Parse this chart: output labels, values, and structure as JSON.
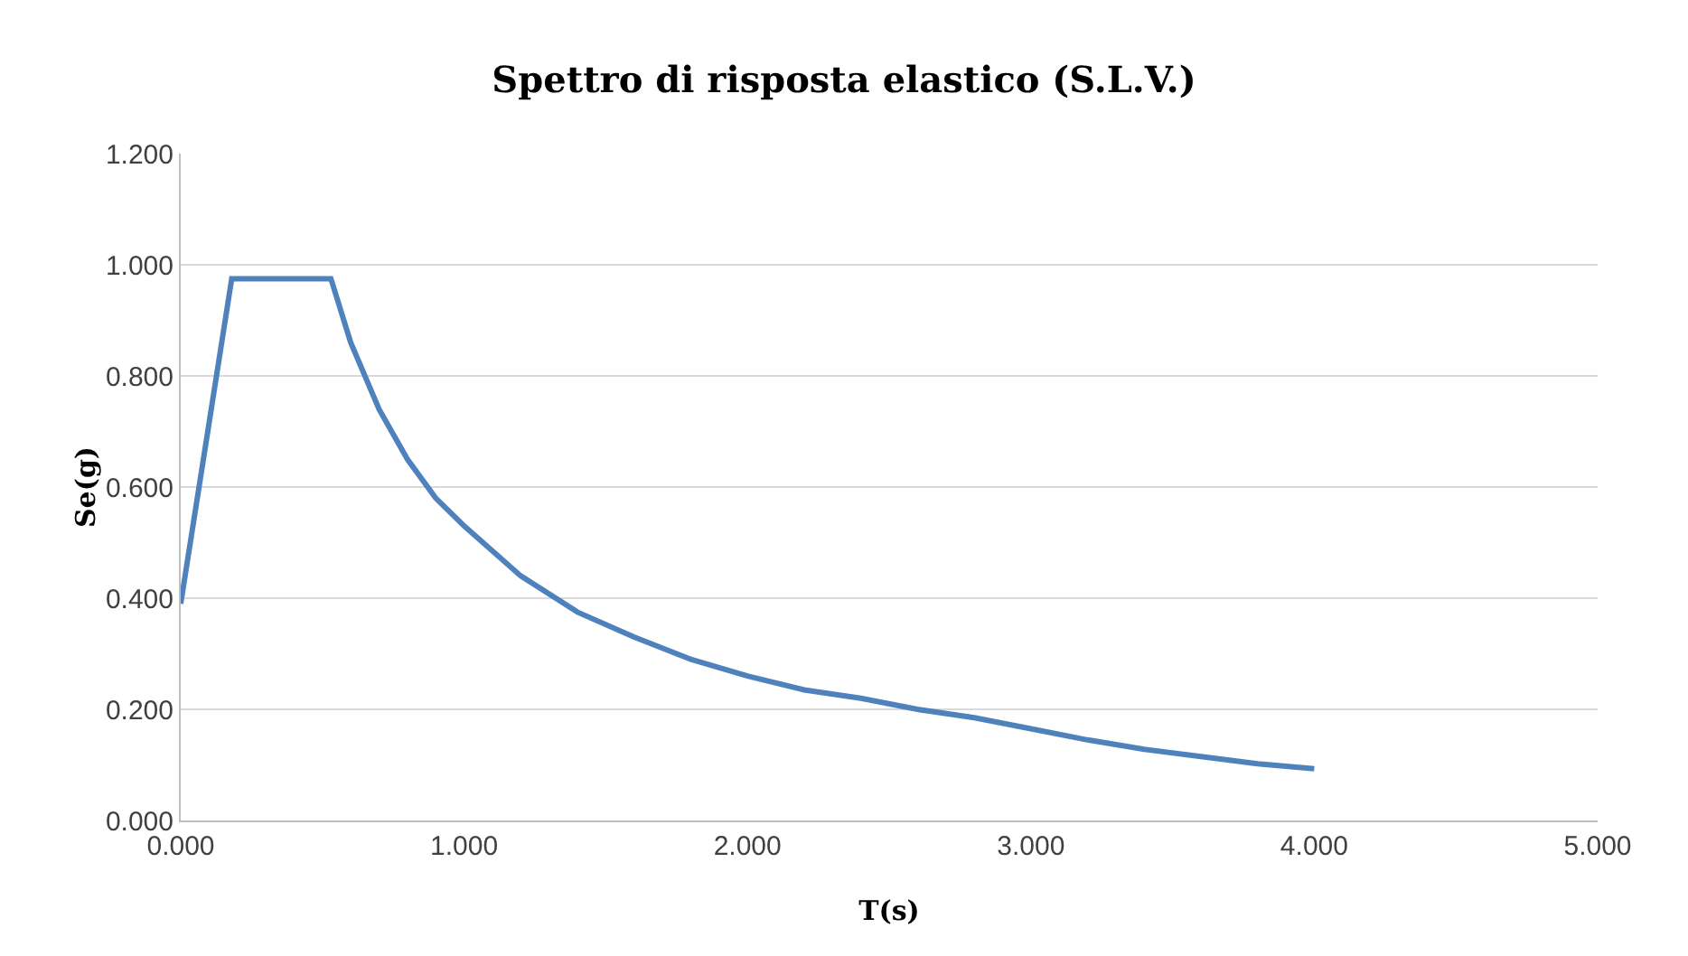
{
  "chart_data": {
    "type": "line",
    "title": "Spettro di risposta elastico (S.L.V.)",
    "xlabel": "T(s)",
    "ylabel": "Se(g)",
    "x": [
      0,
      0.18,
      0.53,
      0.6,
      0.7,
      0.8,
      0.9,
      1.0,
      1.2,
      1.4,
      1.6,
      1.8,
      2.0,
      2.2,
      2.4,
      2.6,
      2.8,
      3.0,
      3.2,
      3.4,
      3.6,
      3.8,
      4.0
    ],
    "series": [
      {
        "color": "#4f81bd",
        "values": [
          0.39,
          0.975,
          0.975,
          0.86,
          0.74,
          0.65,
          0.58,
          0.53,
          0.44,
          0.375,
          0.33,
          0.29,
          0.26,
          0.235,
          0.22,
          0.2,
          0.185,
          0.165,
          0.145,
          0.128,
          0.115,
          0.102,
          0.093
        ]
      }
    ],
    "xlim": [
      0,
      5
    ],
    "xticks": [
      {
        "value": 0,
        "label": "0.000"
      },
      {
        "value": 1,
        "label": "1.000"
      },
      {
        "value": 2,
        "label": "2.000"
      },
      {
        "value": 3,
        "label": "3.000"
      },
      {
        "value": 4,
        "label": "4.000"
      },
      {
        "value": 5,
        "label": "5.000"
      }
    ],
    "ylim": [
      0,
      1.2
    ],
    "yticks": [
      {
        "value": 0,
        "label": "0.000"
      },
      {
        "value": 0.2,
        "label": "0.200"
      },
      {
        "value": 0.4,
        "label": "0.400"
      },
      {
        "value": 0.6,
        "label": "0.600"
      },
      {
        "value": 0.8,
        "label": "0.800"
      },
      {
        "value": 1,
        "label": "1.000"
      },
      {
        "value": 1.2,
        "label": "1.200"
      }
    ],
    "grid": "y",
    "marker": "none",
    "line_style": "solid"
  }
}
